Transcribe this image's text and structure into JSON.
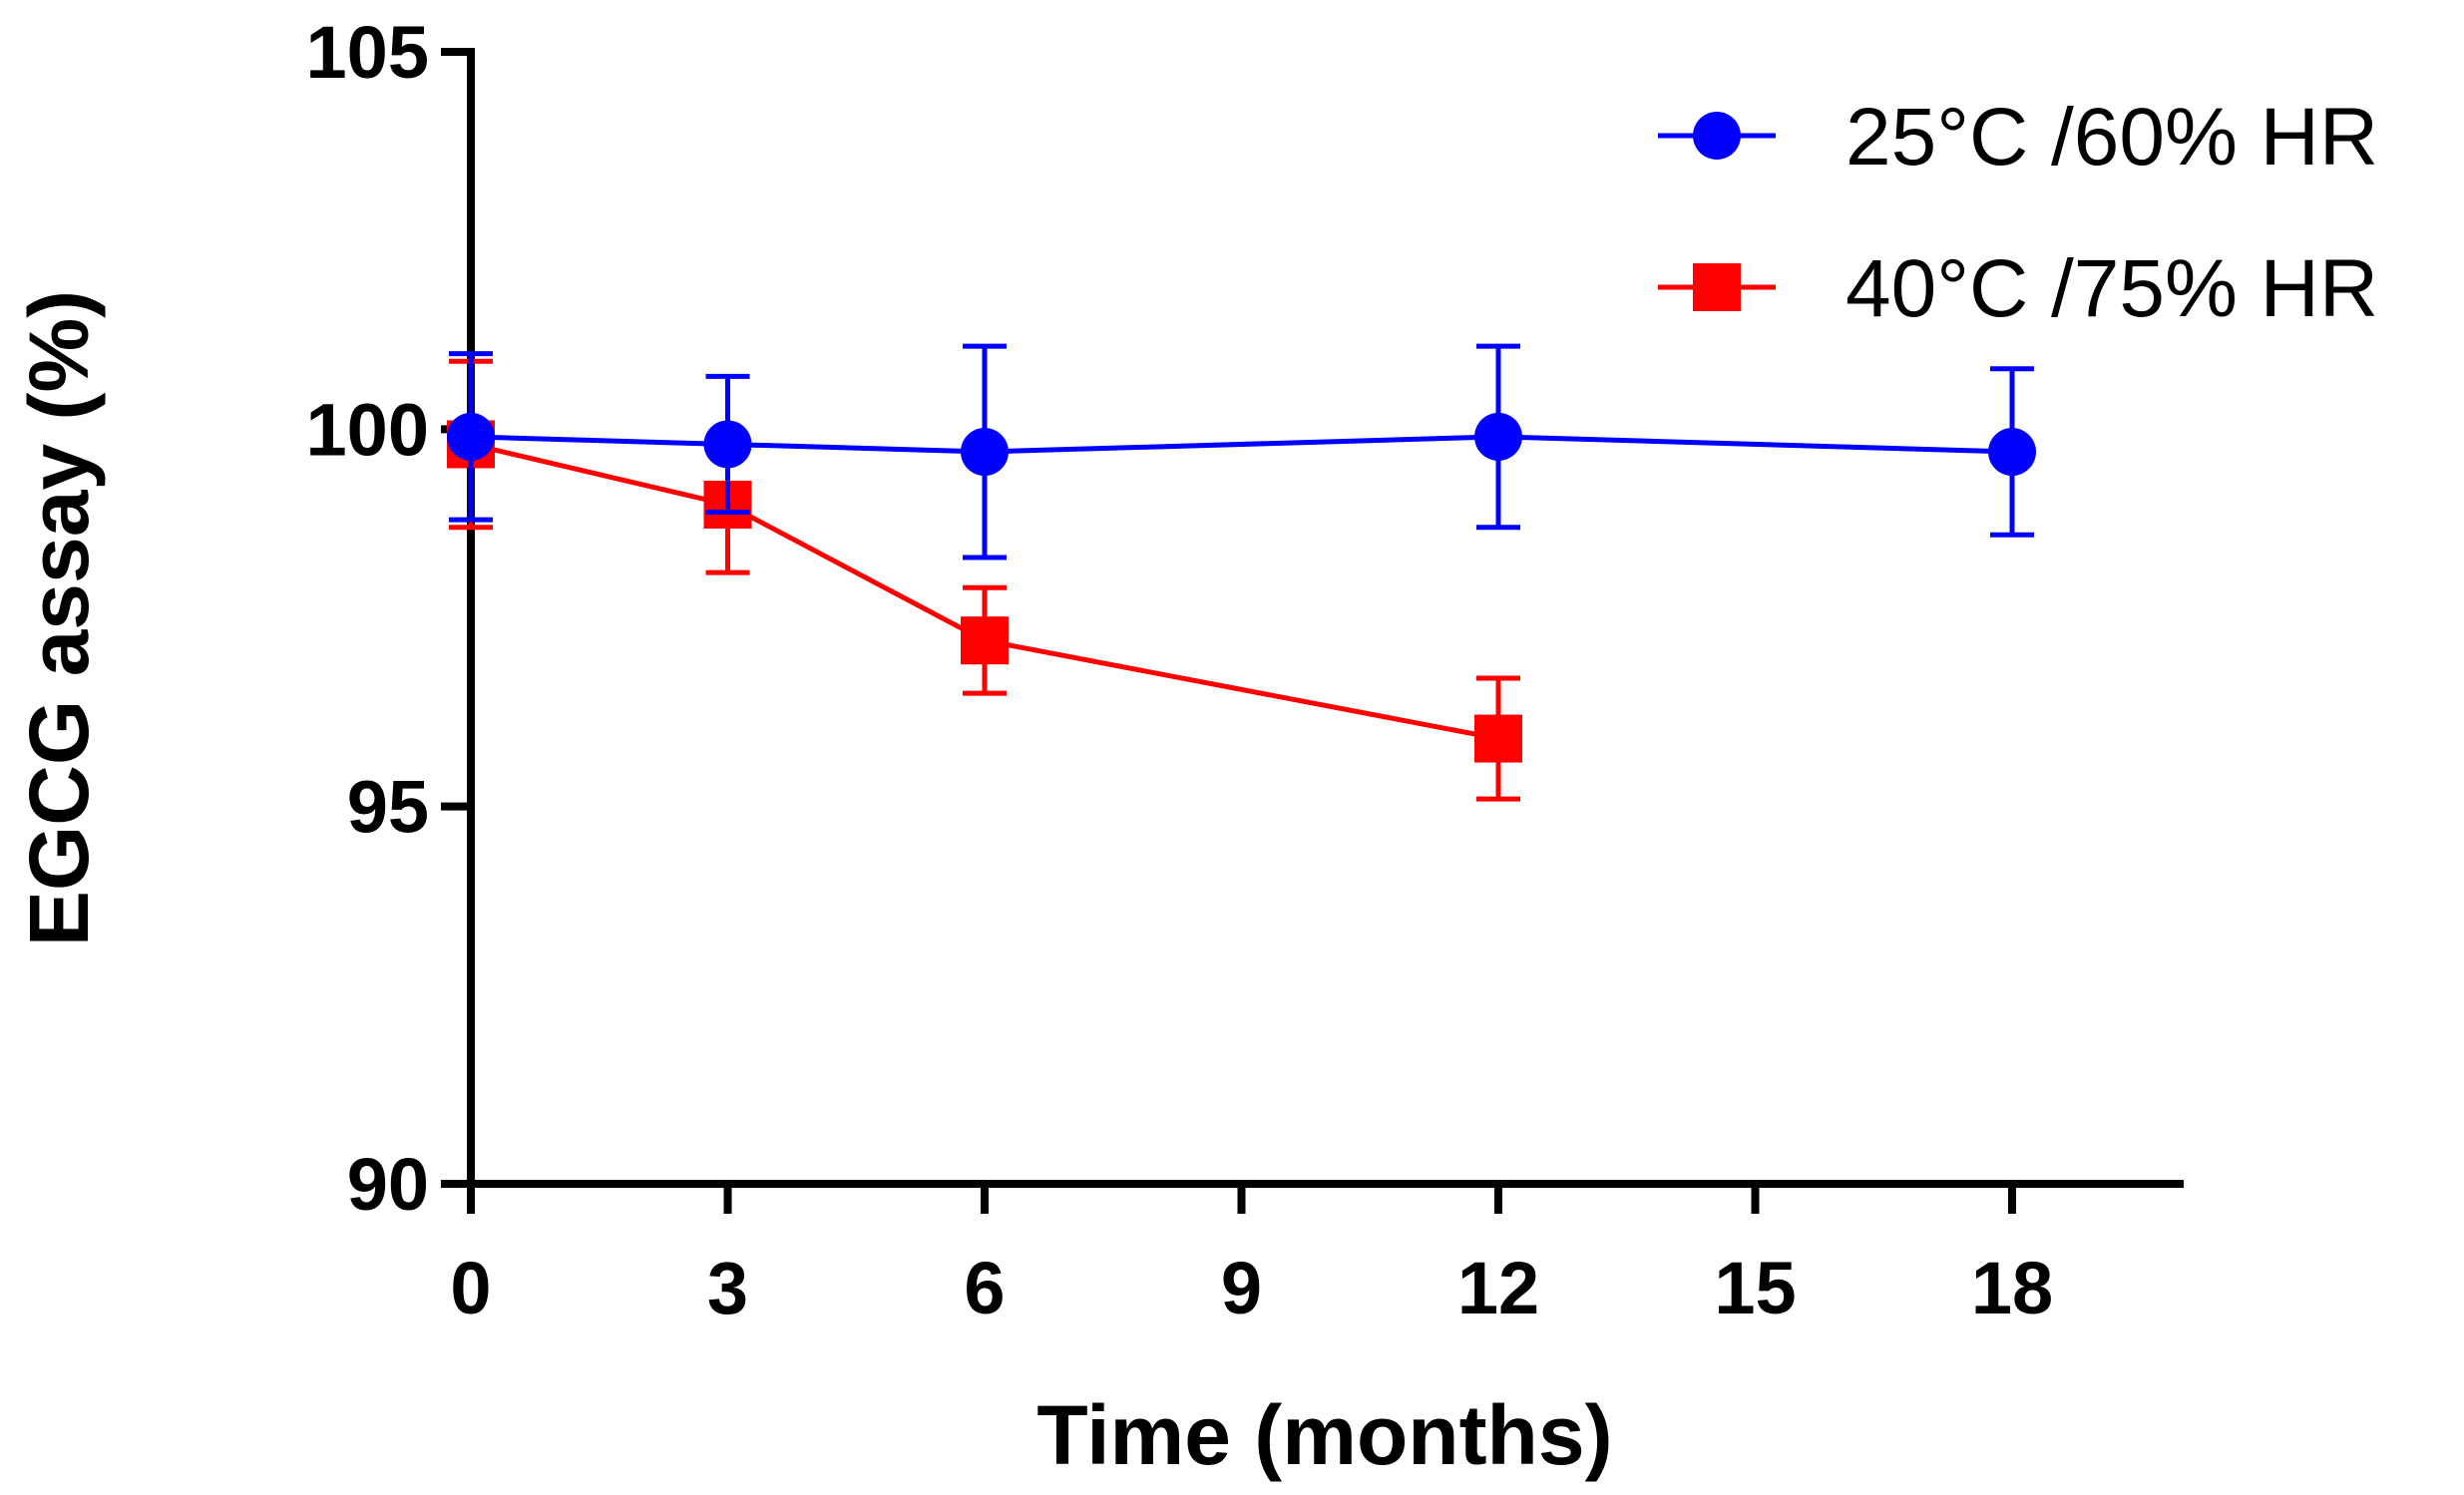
{
  "chart_data": {
    "type": "line",
    "title": "",
    "xlabel": "Time (months)",
    "ylabel": "EGCG assay (%)",
    "xlim": [
      0,
      20
    ],
    "ylim": [
      90,
      105
    ],
    "xticks": [
      0,
      3,
      6,
      9,
      12,
      15,
      18
    ],
    "yticks": [
      90,
      95,
      100,
      105
    ],
    "grid": false,
    "legend_position": "top-right",
    "series": [
      {
        "name": "25°C /60% HR",
        "color": "#0000ff",
        "marker": "circle",
        "x": [
          0,
          3,
          6,
          12,
          18
        ],
        "y": [
          99.9,
          99.8,
          99.7,
          99.9,
          99.7
        ],
        "error": [
          1.1,
          0.9,
          1.4,
          1.2,
          1.1
        ]
      },
      {
        "name": "40°C /75% HR",
        "color": "#ff0000",
        "marker": "square",
        "x": [
          0,
          3,
          6,
          12
        ],
        "y": [
          99.8,
          99.0,
          97.2,
          95.9
        ],
        "error": [
          1.1,
          0.9,
          0.7,
          0.8
        ]
      }
    ]
  }
}
